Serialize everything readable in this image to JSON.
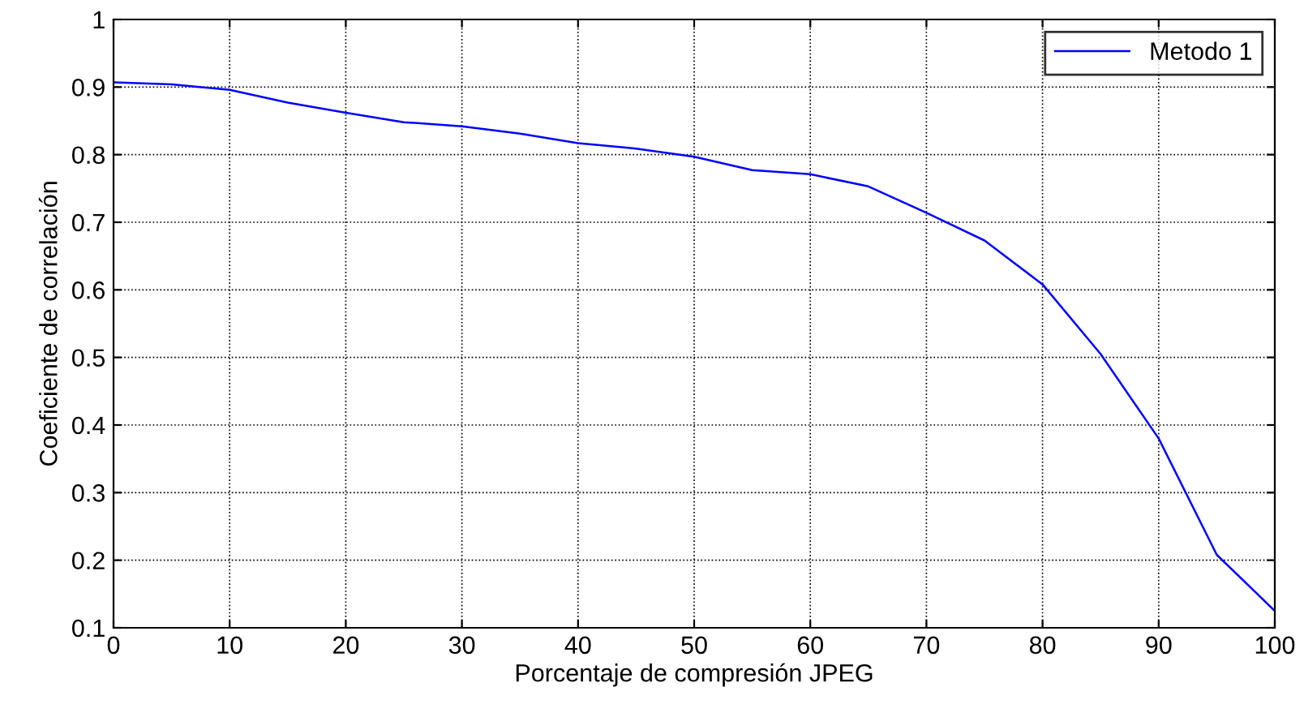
{
  "chart_data": {
    "type": "line",
    "xlabel": "Porcentaje de compresión JPEG",
    "ylabel": "Coeficiente de correlación",
    "x": [
      0,
      5,
      10,
      15,
      20,
      25,
      30,
      35,
      40,
      45,
      50,
      55,
      60,
      65,
      70,
      75,
      80,
      85,
      90,
      95,
      100
    ],
    "series": [
      {
        "name": "Metodo 1",
        "color": "#0000ff",
        "values": [
          0.907,
          0.904,
          0.896,
          0.877,
          0.862,
          0.848,
          0.842,
          0.831,
          0.817,
          0.809,
          0.797,
          0.777,
          0.771,
          0.753,
          0.714,
          0.673,
          0.608,
          0.505,
          0.38,
          0.208,
          0.125
        ]
      }
    ],
    "xlim": [
      0,
      100
    ],
    "xticks": [
      0,
      10,
      20,
      30,
      40,
      50,
      60,
      70,
      80,
      90,
      100
    ],
    "ylim": [
      0.1,
      1
    ],
    "yticks": [
      0.1,
      0.2,
      0.3,
      0.4,
      0.5,
      0.6,
      0.7,
      0.8,
      0.9,
      1
    ],
    "grid": true,
    "legend": "top right",
    "line_style": "solid",
    "marker": "none"
  }
}
